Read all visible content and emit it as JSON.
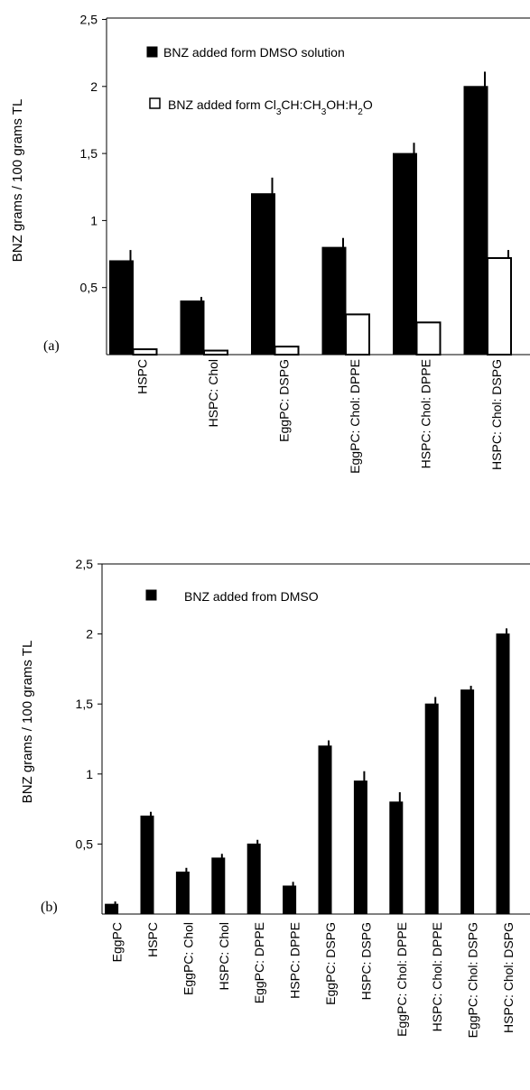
{
  "chart_data": [
    {
      "type": "bar",
      "panel_label": "(a)",
      "ylabel": "BNZ grams / 100 grams TL",
      "ylim": [
        0,
        2.5
      ],
      "yticks": [
        "0,5",
        "1",
        "1,5",
        "2",
        "2,5"
      ],
      "grid": false,
      "legend_position": "top",
      "categories": [
        "HSPC",
        "HSPC: Chol",
        "EggPC: DSPG",
        "EggPC: Chol: DPPE",
        "HSPC: Chol: DPPE",
        "HSPC: Chol: DSPG"
      ],
      "series": [
        {
          "name": "BNZ added form DMSO solution",
          "fill": "#000000",
          "values": [
            0.7,
            0.4,
            1.2,
            0.8,
            1.5,
            2.0
          ],
          "errors": [
            0.08,
            0.03,
            0.12,
            0.07,
            0.08,
            0.11
          ]
        },
        {
          "name": "BNZ added form Cl3CH:CH3OH:H2O",
          "fill": "#ffffff",
          "values": [
            0.04,
            0.03,
            0.06,
            0.3,
            0.24,
            0.72
          ],
          "errors": [
            0,
            0,
            0,
            0,
            0,
            0.06
          ]
        }
      ]
    },
    {
      "type": "bar",
      "panel_label": "(b)",
      "ylabel": "BNZ grams / 100 grams TL",
      "ylim": [
        0,
        2.5
      ],
      "yticks": [
        "0,5",
        "1",
        "1,5",
        "2",
        "2,5"
      ],
      "grid": false,
      "legend_position": "top",
      "categories": [
        "EggPC",
        "HSPC",
        "EggPC: Chol",
        "HSPC: Chol",
        "EggPC: DPPE",
        "HSPC: DPPE",
        "EggPC: DSPG",
        "HSPC: DSPG",
        "EggPC: Chol: DPPE",
        "HSPC: Chol: DPPE",
        "EggPC: Chol: DSPG",
        "HSPC: Chol: DSPG"
      ],
      "series": [
        {
          "name": "BNZ added from DMSO",
          "fill": "#000000",
          "values": [
            0.07,
            0.7,
            0.3,
            0.4,
            0.5,
            0.2,
            1.2,
            0.95,
            0.8,
            1.5,
            1.6,
            2.0
          ],
          "errors": [
            0.02,
            0.03,
            0.03,
            0.03,
            0.03,
            0.03,
            0.04,
            0.07,
            0.07,
            0.05,
            0.03,
            0.04
          ]
        }
      ]
    }
  ]
}
